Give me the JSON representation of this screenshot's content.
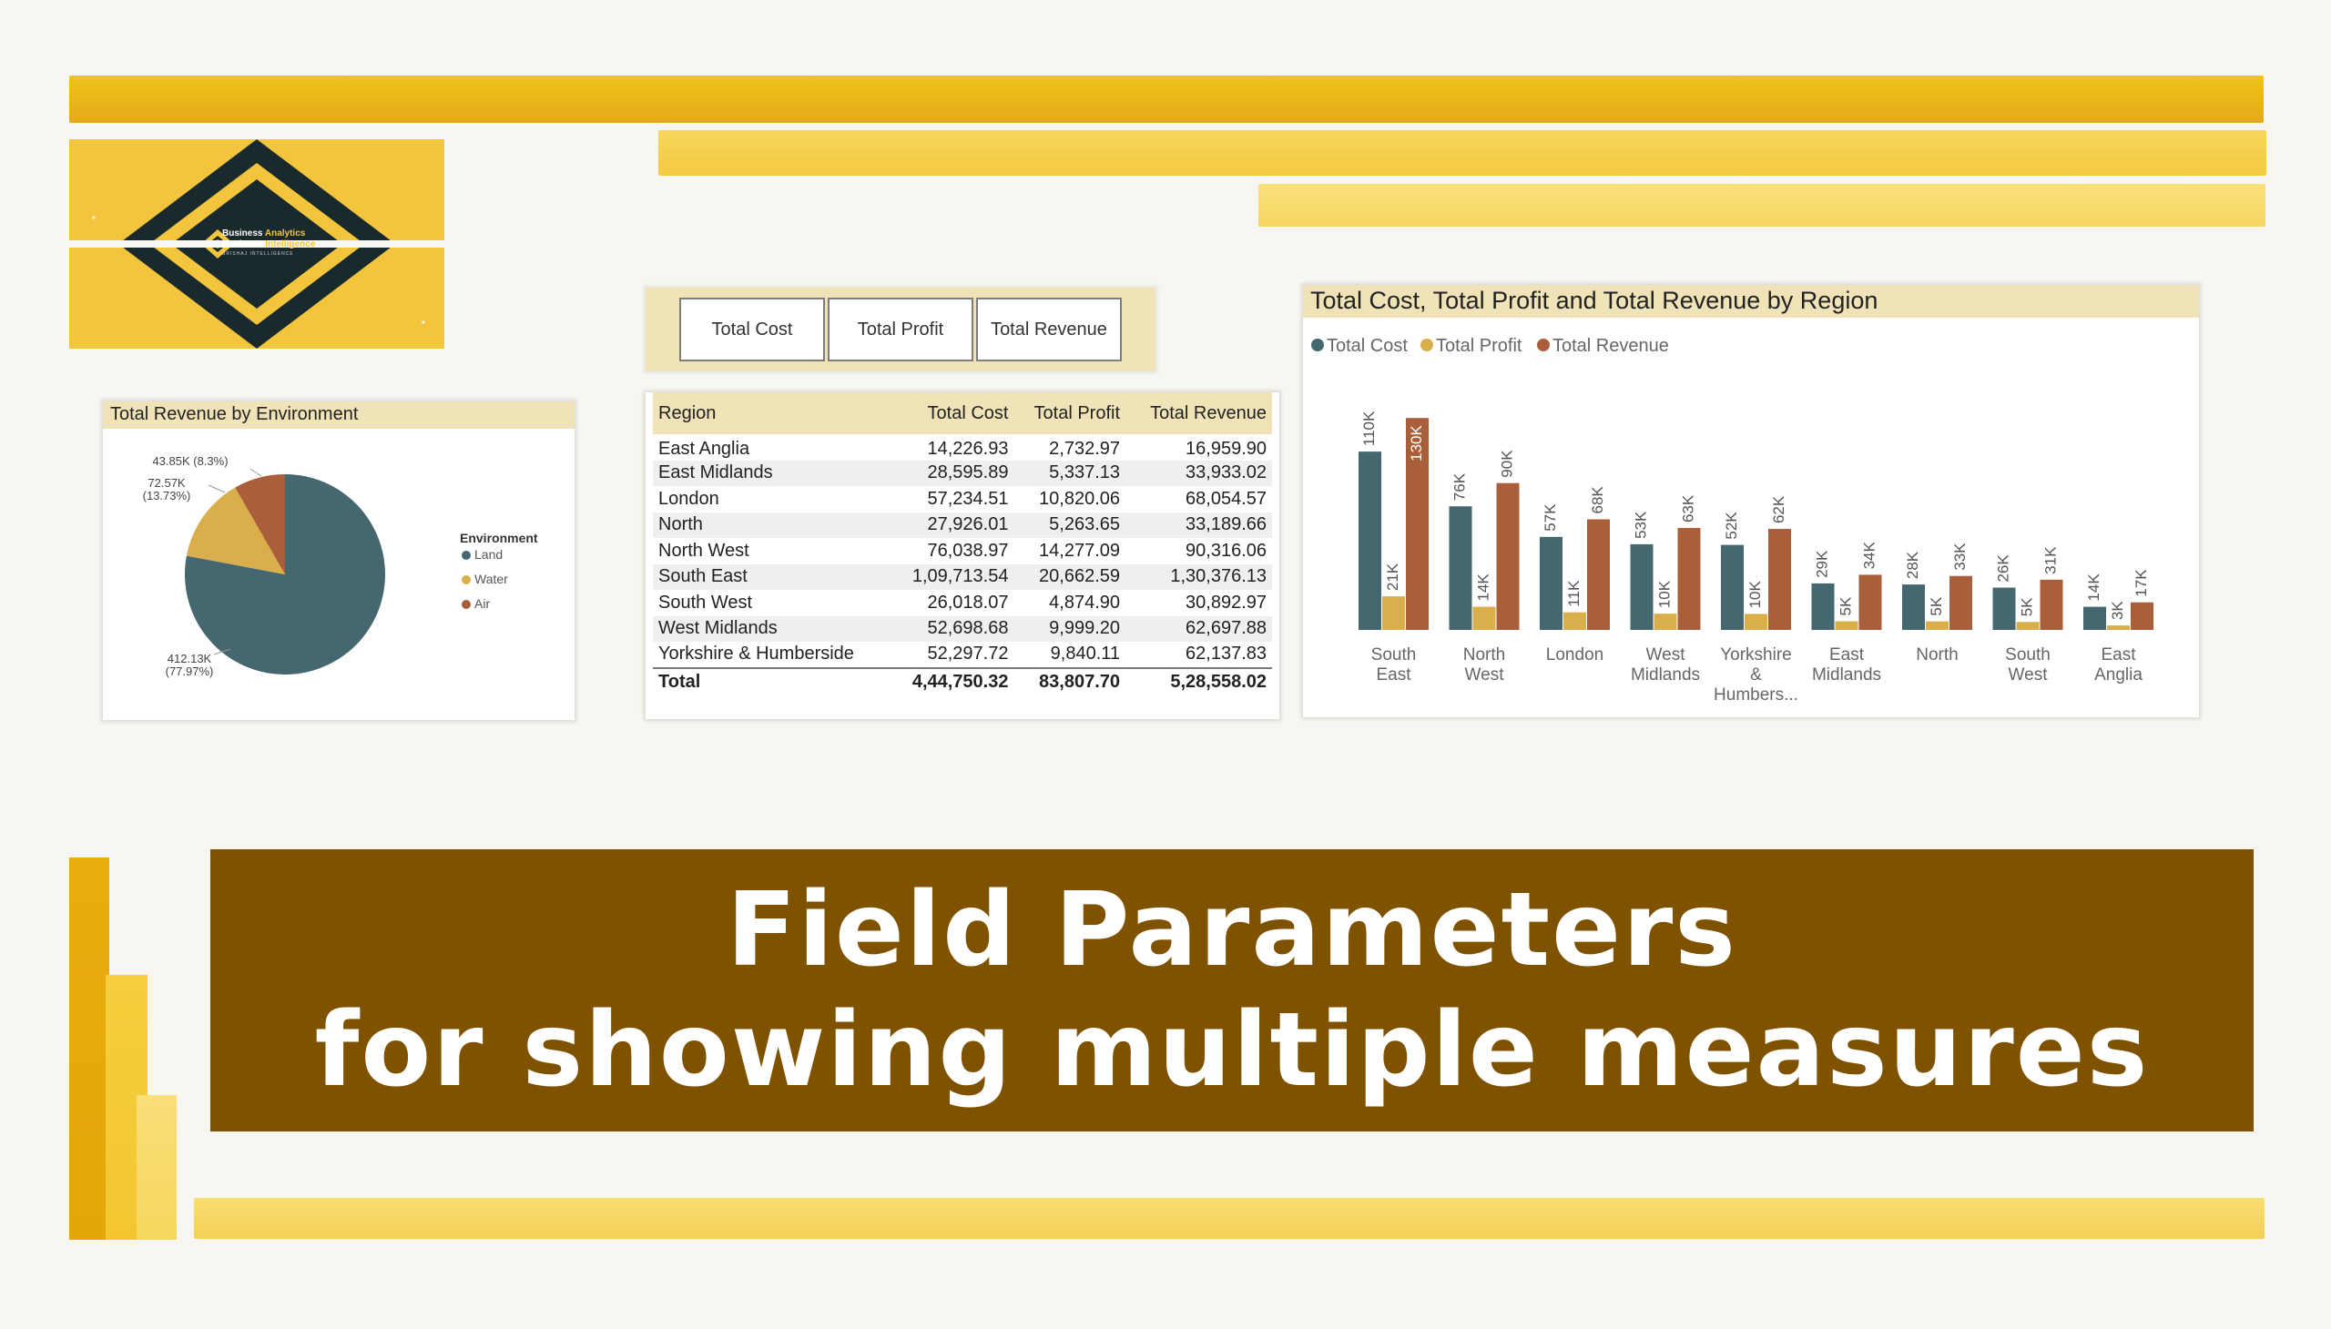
{
  "logo": {
    "line1_a": "Business ",
    "line1_b": "Analytics",
    "line2_a": "Business ",
    "line2_b": "Intelligence",
    "line3": "BRISHAJ INTELLIGENCE"
  },
  "colors": {
    "land": "#446770",
    "water": "#d9ae4b",
    "air": "#a95f3a",
    "banner": "#7f5200"
  },
  "slicer": {
    "buttons": [
      "Total Cost",
      "Total Profit",
      "Total Revenue"
    ]
  },
  "table": {
    "headers": [
      "Region",
      "Total Cost",
      "Total Profit",
      "Total Revenue"
    ],
    "rows": [
      [
        "East Anglia",
        "14,226.93",
        "2,732.97",
        "16,959.90"
      ],
      [
        "East Midlands",
        "28,595.89",
        "5,337.13",
        "33,933.02"
      ],
      [
        "London",
        "57,234.51",
        "10,820.06",
        "68,054.57"
      ],
      [
        "North",
        "27,926.01",
        "5,263.65",
        "33,189.66"
      ],
      [
        "North West",
        "76,038.97",
        "14,277.09",
        "90,316.06"
      ],
      [
        "South East",
        "1,09,713.54",
        "20,662.59",
        "1,30,376.13"
      ],
      [
        "South West",
        "26,018.07",
        "4,874.90",
        "30,892.97"
      ],
      [
        "West Midlands",
        "52,698.68",
        "9,999.20",
        "62,697.88"
      ],
      [
        "Yorkshire & Humberside",
        "52,297.72",
        "9,840.11",
        "62,137.83"
      ]
    ],
    "total": [
      "Total",
      "4,44,750.32",
      "83,807.70",
      "5,28,558.02"
    ]
  },
  "chart_data": [
    {
      "type": "pie",
      "title": "Total Revenue by Environment",
      "legend_title": "Environment",
      "legend_position": "right",
      "categories": [
        "Land",
        "Water",
        "Air"
      ],
      "values": [
        412.13,
        72.57,
        43.85
      ],
      "data_labels": [
        {
          "line1": "412.13K",
          "line2": "(77.97%)"
        },
        {
          "line1": "72.57K",
          "line2": "(13.73%)"
        },
        {
          "line1": "43.85K (8.3%)",
          "line2": ""
        }
      ]
    },
    {
      "type": "bar",
      "title": "Total Cost, Total Profit and Total Revenue by Region",
      "legend_position": "top-left",
      "categories": [
        [
          "South",
          "East"
        ],
        [
          "North",
          "West"
        ],
        [
          "London"
        ],
        [
          "West",
          "Midlands"
        ],
        [
          "Yorkshire",
          "&",
          "Humbers..."
        ],
        [
          "East",
          "Midlands"
        ],
        [
          "North"
        ],
        [
          "South",
          "West"
        ],
        [
          "East",
          "Anglia"
        ]
      ],
      "series": [
        {
          "name": "Total Cost",
          "values": [
            109.71,
            76.04,
            57.23,
            52.7,
            52.3,
            28.6,
            27.93,
            26.02,
            14.23
          ],
          "labels": [
            "110K",
            "76K",
            "57K",
            "53K",
            "52K",
            "29K",
            "28K",
            "26K",
            "14K"
          ]
        },
        {
          "name": "Total Profit",
          "values": [
            20.66,
            14.28,
            10.82,
            10.0,
            9.84,
            5.34,
            5.26,
            4.87,
            2.73
          ],
          "labels": [
            "21K",
            "14K",
            "11K",
            "10K",
            "10K",
            "5K",
            "5K",
            "5K",
            "3K"
          ]
        },
        {
          "name": "Total Revenue",
          "values": [
            130.38,
            90.32,
            68.05,
            62.7,
            62.14,
            33.93,
            33.19,
            30.89,
            16.96
          ],
          "labels": [
            "130K",
            "90K",
            "68K",
            "63K",
            "62K",
            "34K",
            "33K",
            "31K",
            "17K"
          ]
        }
      ],
      "ylim": [
        0,
        140
      ],
      "units": "K",
      "grid": false
    }
  ],
  "banner": {
    "line1": "Field Parameters",
    "line2": "for showing multiple measures"
  }
}
